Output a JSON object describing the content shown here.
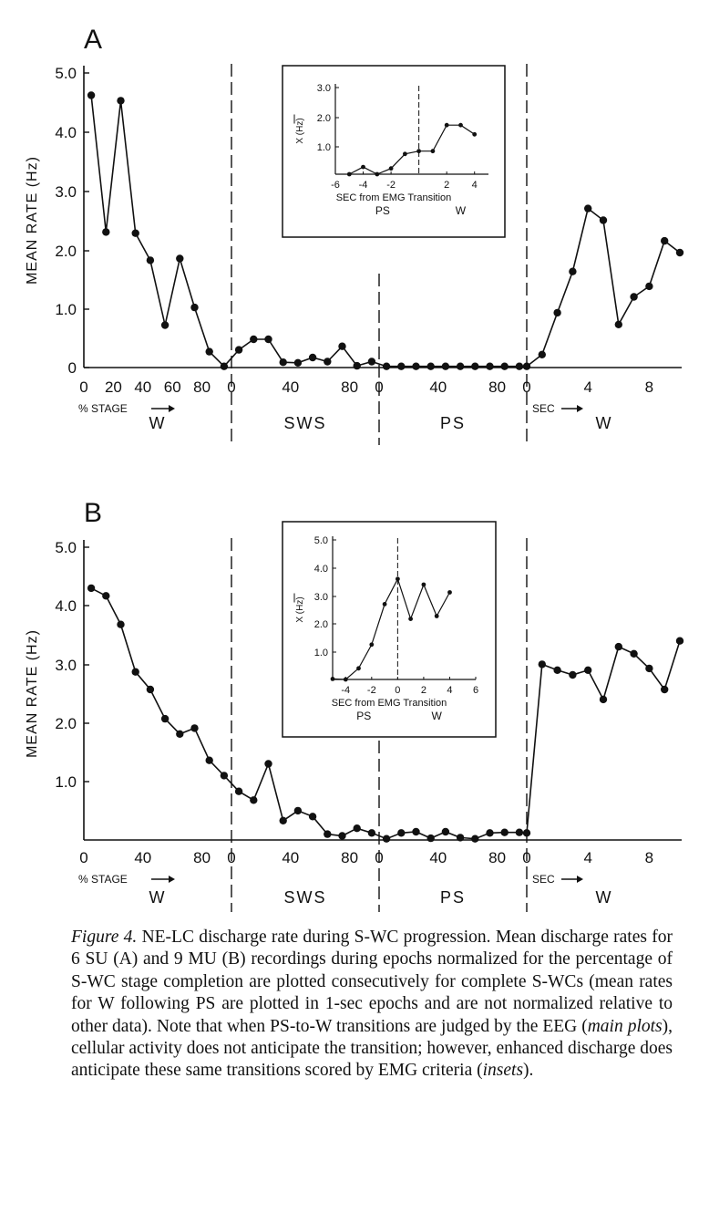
{
  "panels": [
    {
      "label": "A",
      "chart_data": {
        "type": "line",
        "ylabel": "MEAN RATE (Hz)",
        "yticks": [
          "5.0",
          "4.0",
          "3.0",
          "2.0",
          "1.0",
          "0"
        ],
        "ylim": [
          0,
          5.0
        ],
        "xlabel": "% STAGE",
        "sec_label": "SEC",
        "segments": [
          {
            "stage": "W",
            "ticks": [
              "0",
              "20",
              "40",
              "60",
              "80"
            ],
            "x": [
              5,
              15,
              25,
              35,
              45,
              55,
              65,
              75,
              85,
              95
            ],
            "values": [
              4.62,
              2.3,
              4.53,
              2.28,
              1.82,
              0.72,
              1.85,
              1.02,
              0.27,
              0.02
            ]
          },
          {
            "stage": "SWS",
            "ticks": [
              "0",
              "40",
              "80"
            ],
            "x": [
              5,
              15,
              25,
              35,
              45,
              55,
              65,
              75,
              85,
              95
            ],
            "values": [
              0.3,
              0.48,
              0.48,
              0.09,
              0.08,
              0.17,
              0.1,
              0.36,
              0.03,
              0.1
            ]
          },
          {
            "stage": "PS",
            "ticks": [
              "0",
              "40",
              "80"
            ],
            "x": [
              5,
              15,
              25,
              35,
              45,
              55,
              65,
              75,
              85,
              95
            ],
            "values": [
              0.02,
              0.02,
              0.02,
              0.02,
              0.02,
              0.02,
              0.02,
              0.02,
              0.02,
              0.02
            ]
          },
          {
            "stage": "W",
            "ticks": [
              "0",
              "4",
              "8"
            ],
            "x": [
              0,
              1,
              2,
              3,
              4,
              5,
              6,
              7,
              8,
              9,
              10
            ],
            "values": [
              0.02,
              0.22,
              0.93,
              1.63,
              2.7,
              2.5,
              0.73,
              1.2,
              1.38,
              2.15,
              1.95
            ]
          }
        ],
        "inset": {
          "ylabel": "X (Hz)",
          "yticks": [
            "3.0",
            "2.0",
            "1.0"
          ],
          "ylim": [
            0,
            3.0
          ],
          "xticks": [
            "-6",
            "-4",
            "-2",
            "2",
            "4"
          ],
          "xlim": [
            -6,
            5
          ],
          "xlabel": "SEC from EMG Transition",
          "stage_left": "PS",
          "stage_right": "W",
          "x": [
            -5,
            -4,
            -3,
            -2,
            -1,
            0,
            1,
            2,
            3,
            4,
            5
          ],
          "values": [
            0.0,
            0.25,
            0.0,
            0.2,
            0.7,
            0.8,
            0.8,
            1.7,
            1.7,
            1.38,
            null
          ]
        }
      }
    },
    {
      "label": "B",
      "chart_data": {
        "type": "line",
        "ylabel": "MEAN RATE (Hz)",
        "yticks": [
          "5.0",
          "4.0",
          "3.0",
          "2.0",
          "1.0"
        ],
        "ylim": [
          0,
          5.0
        ],
        "xlabel": "% STAGE",
        "sec_label": "SEC",
        "segments": [
          {
            "stage": "W",
            "ticks": [
              "0",
              "40",
              "80"
            ],
            "x": [
              5,
              15,
              25,
              35,
              45,
              55,
              65,
              75,
              85,
              95
            ],
            "values": [
              4.3,
              4.17,
              3.68,
              2.87,
              2.57,
              2.07,
              1.81,
              1.91,
              1.36,
              1.1
            ]
          },
          {
            "stage": "SWS",
            "ticks": [
              "0",
              "40",
              "80"
            ],
            "x": [
              5,
              15,
              25,
              35,
              45,
              55,
              65,
              75,
              85,
              95
            ],
            "values": [
              0.83,
              0.68,
              1.3,
              0.33,
              0.5,
              0.4,
              0.1,
              0.07,
              0.2,
              0.12
            ]
          },
          {
            "stage": "PS",
            "ticks": [
              "0",
              "40",
              "80"
            ],
            "x": [
              5,
              15,
              25,
              35,
              45,
              55,
              65,
              75,
              85,
              95
            ],
            "values": [
              0.02,
              0.12,
              0.14,
              0.03,
              0.14,
              0.04,
              0.02,
              0.12,
              0.13,
              0.13
            ]
          },
          {
            "stage": "W",
            "ticks": [
              "0",
              "4",
              "8"
            ],
            "x": [
              0,
              1,
              2,
              3,
              4,
              5,
              6,
              7,
              8,
              9,
              10
            ],
            "values": [
              0.12,
              3.0,
              2.9,
              2.82,
              2.9,
              2.4,
              3.3,
              3.18,
              2.93,
              2.57,
              3.4
            ]
          }
        ],
        "inset": {
          "ylabel": "X (Hz)",
          "yticks": [
            "5.0",
            "4.0",
            "3.0",
            "2.0",
            "1.0"
          ],
          "ylim": [
            0,
            5.0
          ],
          "xticks": [
            "-4",
            "-2",
            "0",
            "2",
            "4",
            "6"
          ],
          "xlim": [
            -5,
            6
          ],
          "xlabel": "SEC from EMG Transition",
          "stage_left": "PS",
          "stage_right": "W",
          "x": [
            -5,
            -4,
            -3,
            -2,
            -1,
            0,
            1,
            2,
            3,
            4,
            5
          ],
          "values": [
            0.02,
            0.0,
            0.4,
            1.25,
            2.7,
            3.6,
            2.17,
            3.4,
            2.27,
            3.12,
            null
          ]
        }
      }
    }
  ],
  "caption": {
    "label": "Figure 4.",
    "text": "NE-LC discharge rate during S-WC progression. Mean discharge rates for 6 SU (A) and 9 MU (B) recordings during epochs normalized for the percentage of S-WC stage completion are plotted consecutively for complete S-WCs (mean rates for W following PS are plotted in 1-sec epochs and are not normalized relative to other data). Note that when PS-to-W transitions are judged by the EEG (",
    "em1": "main plots",
    "text2": "), cellular activity does not anticipate the transition; however, enhanced discharge does anticipate these same transitions scored by EMG criteria (",
    "em2": "insets",
    "text3": ")."
  }
}
